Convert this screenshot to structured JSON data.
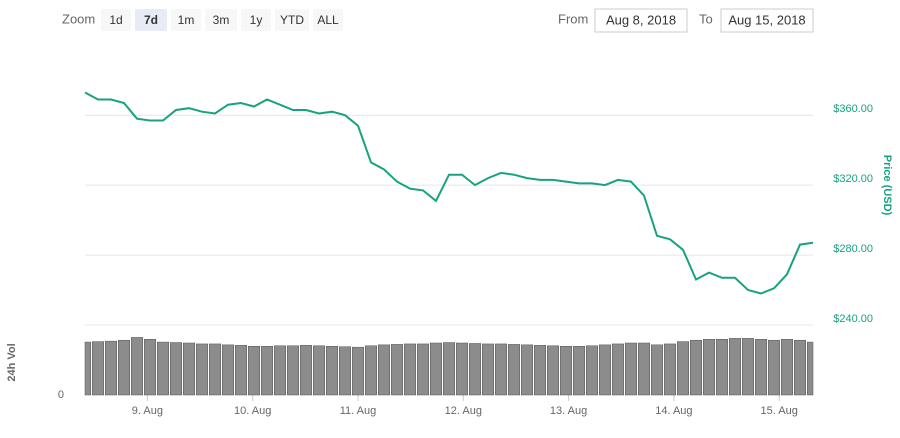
{
  "toolbar": {
    "zoom_label": "Zoom",
    "buttons": [
      "1d",
      "7d",
      "1m",
      "3m",
      "1y",
      "YTD",
      "ALL"
    ],
    "active": "7d",
    "from_label": "From",
    "from_value": "Aug 8, 2018",
    "to_label": "To",
    "to_value": "Aug 15, 2018"
  },
  "chart_data": [
    {
      "type": "line",
      "ylabel": "Price (USD)",
      "x": [
        0,
        1,
        2,
        3,
        4,
        5,
        6,
        7,
        8,
        9,
        10,
        11,
        12,
        13,
        14,
        15,
        16,
        17,
        18,
        19,
        20,
        21,
        22,
        23,
        24,
        25,
        26,
        27,
        28,
        29,
        30,
        31,
        32,
        33,
        34,
        35,
        36,
        37,
        38,
        39,
        40,
        41,
        42,
        43,
        44,
        45,
        46,
        47,
        48,
        49,
        50,
        51,
        52,
        53,
        54,
        55,
        56
      ],
      "series": [
        {
          "name": "Price",
          "color": "#18a27f",
          "values": [
            373,
            369,
            369,
            367,
            358,
            357,
            357,
            363,
            364,
            362,
            361,
            366,
            367,
            365,
            369,
            366,
            363,
            363,
            361,
            362,
            360,
            354,
            333,
            329,
            322,
            318,
            317,
            311,
            326,
            326,
            320,
            324,
            327,
            326,
            324,
            323,
            323,
            322,
            321,
            321,
            320,
            323,
            322,
            314,
            291,
            289,
            283,
            266,
            270,
            267,
            267,
            260,
            258,
            261,
            269,
            286,
            287
          ]
        }
      ],
      "xlim": [
        0,
        56
      ],
      "ylim": [
        240,
        383
      ],
      "yticks": [
        {
          "value": 240,
          "label": "$240.00"
        },
        {
          "value": 280,
          "label": "$280.00"
        },
        {
          "value": 320,
          "label": "$320.00"
        },
        {
          "value": 360,
          "label": "$360.00"
        }
      ],
      "grid": true
    },
    {
      "type": "bar",
      "ylabel": "24h Vol",
      "x": [
        0,
        1,
        2,
        3,
        4,
        5,
        6,
        7,
        8,
        9,
        10,
        11,
        12,
        13,
        14,
        15,
        16,
        17,
        18,
        19,
        20,
        21,
        22,
        23,
        24,
        25,
        26,
        27,
        28,
        29,
        30,
        31,
        32,
        33,
        34,
        35,
        36,
        37,
        38,
        39,
        40,
        41,
        42,
        43,
        44,
        45,
        46,
        47,
        48,
        49,
        50,
        51,
        52,
        53,
        54,
        55,
        56
      ],
      "series": [
        {
          "name": "24h Vol",
          "color": "#8c8c8c",
          "values": [
            1140000000,
            1150000000,
            1160000000,
            1180000000,
            1240000000,
            1200000000,
            1140000000,
            1130000000,
            1120000000,
            1100000000,
            1100000000,
            1080000000,
            1070000000,
            1050000000,
            1050000000,
            1060000000,
            1060000000,
            1070000000,
            1060000000,
            1050000000,
            1040000000,
            1030000000,
            1060000000,
            1080000000,
            1090000000,
            1100000000,
            1100000000,
            1120000000,
            1130000000,
            1120000000,
            1110000000,
            1100000000,
            1100000000,
            1090000000,
            1080000000,
            1070000000,
            1060000000,
            1050000000,
            1050000000,
            1060000000,
            1080000000,
            1100000000,
            1120000000,
            1120000000,
            1080000000,
            1100000000,
            1150000000,
            1180000000,
            1200000000,
            1200000000,
            1220000000,
            1220000000,
            1200000000,
            1180000000,
            1200000000,
            1180000000,
            1140000000
          ]
        }
      ],
      "xlim": [
        0,
        56
      ],
      "ylim": [
        0,
        1400000000
      ],
      "yticks": [
        0
      ],
      "xticks": [
        {
          "value": 4.8,
          "label": "9. Aug"
        },
        {
          "value": 12.9,
          "label": "10. Aug"
        },
        {
          "value": 21.0,
          "label": "11. Aug"
        },
        {
          "value": 29.1,
          "label": "12. Aug"
        },
        {
          "value": 37.2,
          "label": "13. Aug"
        },
        {
          "value": 45.3,
          "label": "14. Aug"
        },
        {
          "value": 53.4,
          "label": "15. Aug"
        }
      ]
    }
  ]
}
